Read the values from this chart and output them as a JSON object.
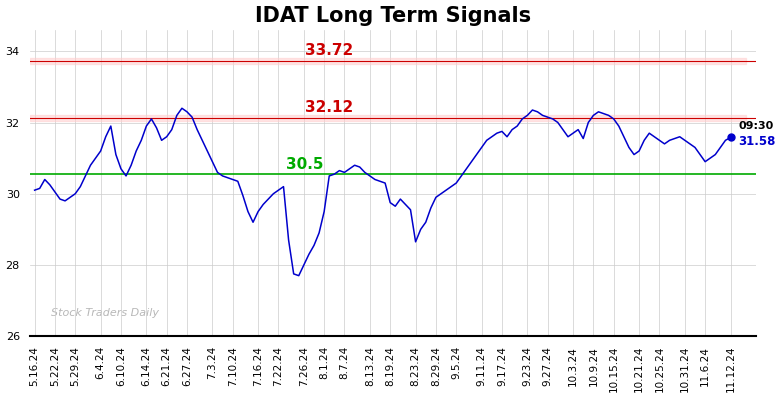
{
  "title": "IDAT Long Term Signals",
  "hline_red1": 33.72,
  "hline_red2": 32.12,
  "hline_green": 30.55,
  "last_price": 31.58,
  "last_time": "09:30",
  "ylim": [
    26,
    34.6
  ],
  "yticks": [
    26,
    28,
    30,
    32,
    34
  ],
  "watermark": "Stock Traders Daily",
  "x_labels": [
    "5.16.24",
    "5.22.24",
    "5.29.24",
    "6.4.24",
    "6.10.24",
    "6.14.24",
    "6.21.24",
    "6.27.24",
    "7.3.24",
    "7.10.24",
    "7.16.24",
    "7.22.24",
    "7.26.24",
    "8.1.24",
    "8.7.24",
    "8.13.24",
    "8.19.24",
    "8.23.24",
    "8.29.24",
    "9.5.24",
    "9.11.24",
    "9.17.24",
    "9.23.24",
    "9.27.24",
    "10.3.24",
    "10.9.24",
    "10.15.24",
    "10.21.24",
    "10.25.24",
    "10.31.24",
    "11.6.24",
    "11.12.24"
  ],
  "prices": [
    30.1,
    30.15,
    30.4,
    30.25,
    30.05,
    29.85,
    29.8,
    29.9,
    30.0,
    30.2,
    30.5,
    30.8,
    31.0,
    31.2,
    31.6,
    31.9,
    31.1,
    30.7,
    30.5,
    30.8,
    31.2,
    31.5,
    31.9,
    32.1,
    31.85,
    31.5,
    31.6,
    31.8,
    32.2,
    32.4,
    32.3,
    32.15,
    31.8,
    31.5,
    31.2,
    30.9,
    30.6,
    30.5,
    30.45,
    30.4,
    30.35,
    29.95,
    29.5,
    29.2,
    29.5,
    29.7,
    29.85,
    30.0,
    30.1,
    30.2,
    28.7,
    27.75,
    27.7,
    28.0,
    28.3,
    28.55,
    28.9,
    29.5,
    30.5,
    30.55,
    30.65,
    30.6,
    30.7,
    30.8,
    30.75,
    30.6,
    30.5,
    30.4,
    30.35,
    30.3,
    29.75,
    29.65,
    29.85,
    29.7,
    29.55,
    28.65,
    29.0,
    29.2,
    29.6,
    29.9,
    30.0,
    30.1,
    30.2,
    30.3,
    30.5,
    30.7,
    30.9,
    31.1,
    31.3,
    31.5,
    31.6,
    31.7,
    31.75,
    31.6,
    31.8,
    31.9,
    32.1,
    32.2,
    32.35,
    32.3,
    32.2,
    32.15,
    32.1,
    32.0,
    31.8,
    31.6,
    31.7,
    31.8,
    31.55,
    32.0,
    32.2,
    32.3,
    32.25,
    32.2,
    32.1,
    31.9,
    31.6,
    31.3,
    31.1,
    31.2,
    31.5,
    31.7,
    31.6,
    31.5,
    31.4,
    31.5,
    31.55,
    31.6,
    31.5,
    31.4,
    31.3,
    31.1,
    30.9,
    31.0,
    31.1,
    31.3,
    31.5,
    31.58
  ],
  "line_color": "#0000cc",
  "red_line_color": "#cc0000",
  "red_fill_color": "#ffcccc",
  "green_line_color": "#00aa00",
  "annotation_color_red": "#cc0000",
  "annotation_color_green": "#00aa00",
  "grid_color": "#cccccc",
  "bg_color": "#ffffff",
  "watermark_color": "#b0b0b0",
  "title_fontsize": 15,
  "tick_fontsize": 7.5,
  "annotation_fontsize": 11
}
